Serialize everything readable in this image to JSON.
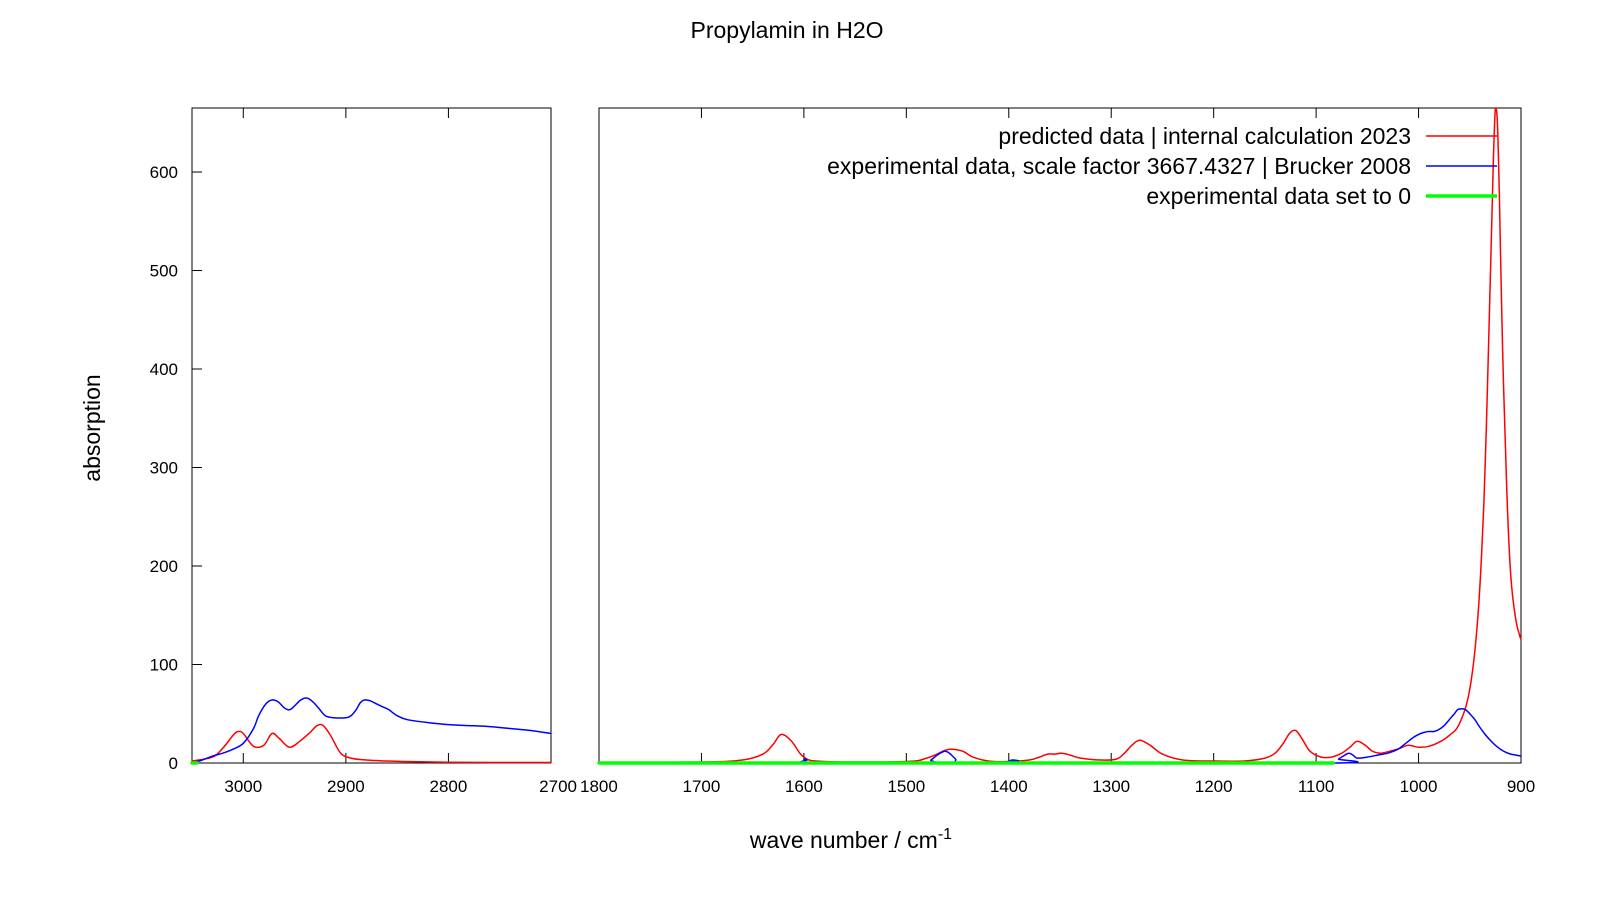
{
  "chart_data": {
    "type": "line",
    "title": "Propylamin in H2O",
    "xlabel": "wave number / cm",
    "xlabel_superscript": "-1",
    "ylabel": "absorption",
    "ylim": [
      0,
      665
    ],
    "y_ticks": [
      0,
      100,
      200,
      300,
      400,
      500,
      600
    ],
    "grid": false,
    "legend_position": "top-right",
    "broken_x_axis": true,
    "panels": [
      {
        "xlim": [
          3050,
          2700
        ],
        "x_ticks": [
          3000,
          2900,
          2800,
          2700
        ]
      },
      {
        "xlim": [
          1800,
          900
        ],
        "x_ticks": [
          1800,
          1700,
          1600,
          1500,
          1400,
          1300,
          1200,
          1100,
          1000,
          900
        ]
      }
    ],
    "series": [
      {
        "name": "predicted data | internal calculation 2023",
        "color": "#ff0000",
        "line_width": 1.5,
        "x": [
          3050,
          3030,
          3020,
          3010,
          3005,
          3000,
          2990,
          2980,
          2972,
          2965,
          2955,
          2945,
          2935,
          2928,
          2922,
          2915,
          2905,
          2895,
          2880,
          2860,
          2800,
          2700,
          1800,
          1700,
          1660,
          1640,
          1630,
          1622,
          1612,
          1600,
          1580,
          1500,
          1480,
          1470,
          1462,
          1455,
          1445,
          1435,
          1420,
          1400,
          1380,
          1370,
          1362,
          1355,
          1348,
          1340,
          1330,
          1310,
          1295,
          1287,
          1280,
          1272,
          1262,
          1250,
          1230,
          1200,
          1170,
          1150,
          1140,
          1132,
          1126,
          1120,
          1114,
          1106,
          1095,
          1085,
          1075,
          1067,
          1060,
          1052,
          1045,
          1037,
          1028,
          1018,
          1010,
          1000,
          990,
          980,
          970,
          960,
          950,
          942,
          936,
          932,
          929,
          927,
          925,
          923,
          921,
          918,
          914,
          910,
          905,
          900
        ],
        "y": [
          2,
          6,
          15,
          28,
          32,
          30,
          17,
          18,
          30,
          25,
          16,
          22,
          31,
          38,
          38,
          28,
          10,
          5,
          3,
          2,
          0.8,
          0.5,
          0.5,
          1,
          3,
          9,
          19,
          29,
          22,
          6,
          1.5,
          1.5,
          5,
          9,
          13,
          14,
          12,
          6,
          2,
          1.5,
          3,
          6,
          9,
          9,
          10,
          8,
          5,
          3,
          4,
          10,
          18,
          23,
          18,
          9,
          3,
          2,
          2,
          5,
          10,
          20,
          30,
          33,
          25,
          12,
          6,
          6,
          10,
          16,
          22,
          18,
          12,
          10,
          12,
          15,
          18,
          16,
          17,
          21,
          28,
          40,
          75,
          150,
          270,
          410,
          530,
          610,
          665,
          650,
          570,
          420,
          280,
          190,
          145,
          125
        ]
      },
      {
        "name": "experimental data, scale factor 3667.4327 | Brucker 2008",
        "color": "#0000ff",
        "line_width": 1.5,
        "x": [
          3050,
          3040,
          3030,
          3020,
          3010,
          3000,
          2990,
          2985,
          2978,
          2972,
          2966,
          2960,
          2955,
          2950,
          2944,
          2938,
          2932,
          2926,
          2920,
          2912,
          2900,
          2895,
          2890,
          2886,
          2882,
          2876,
          2870,
          2864,
          2858,
          2850,
          2840,
          2820,
          2800,
          2780,
          2760,
          2740,
          2720,
          2700,
          1600,
          1597,
          1595,
          1482,
          1476,
          1470,
          1465,
          1462,
          1458,
          1452,
          1448,
          1405,
          1400,
          1396,
          1390,
          1385,
          1083,
          1078,
          1072,
          1068,
          1064,
          1060,
          1050,
          1040,
          1030,
          1020,
          1015,
          1010,
          1005,
          1000,
          995,
          990,
          985,
          980,
          975,
          970,
          965,
          962,
          958,
          954,
          950,
          945,
          940,
          935,
          930,
          925,
          920,
          915,
          910,
          905,
          900
        ],
        "y": [
          0,
          3,
          7,
          10,
          14,
          20,
          35,
          48,
          60,
          64,
          62,
          56,
          54,
          58,
          64,
          66,
          62,
          55,
          48,
          46,
          46,
          48,
          54,
          61,
          64,
          63,
          60,
          57,
          54,
          48,
          44,
          41,
          39,
          38,
          37,
          35,
          33,
          30,
          4,
          3,
          0,
          0,
          3,
          8,
          11,
          12,
          10,
          4,
          0,
          0,
          2,
          3,
          2,
          0,
          0,
          4,
          8,
          10,
          8,
          5,
          6,
          8,
          10,
          14,
          18,
          22,
          26,
          29,
          31,
          32,
          32,
          34,
          38,
          44,
          50,
          54,
          55,
          54,
          50,
          44,
          36,
          29,
          23,
          18,
          14,
          11,
          9,
          8,
          7
        ]
      },
      {
        "name": "experimental data set to 0",
        "color": "#00ff00",
        "line_width": 3.5,
        "x": [
          3050,
          3045,
          1800,
          1478,
          1448,
          1402,
          1385,
          1083
        ],
        "y": [
          0,
          0,
          0,
          0,
          0,
          0,
          0,
          0
        ]
      }
    ]
  }
}
